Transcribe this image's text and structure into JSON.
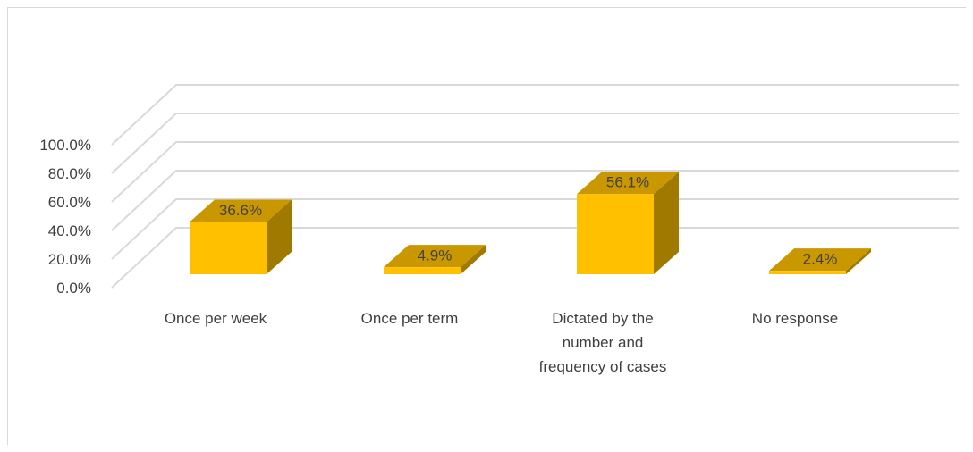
{
  "chart_data": {
    "type": "bar",
    "categories": [
      [
        "Once per week"
      ],
      [
        "Once per term"
      ],
      [
        "Dictated by the",
        "number and",
        "frequency of cases"
      ],
      [
        "No response"
      ]
    ],
    "values": [
      36.6,
      4.9,
      56.1,
      2.4
    ],
    "data_labels": [
      "36.6%",
      "4.9%",
      "56.1%",
      "2.4%"
    ],
    "y_ticks": [
      "0.0%",
      "20.0%",
      "40.0%",
      "60.0%",
      "80.0%",
      "100.0%"
    ],
    "ylim": [
      0,
      100
    ],
    "grid": true,
    "style": "3d-column",
    "colors": {
      "front": "#ffc000",
      "side": "#a07900",
      "top": "#c99700",
      "grid": "#d9d9d9"
    }
  }
}
